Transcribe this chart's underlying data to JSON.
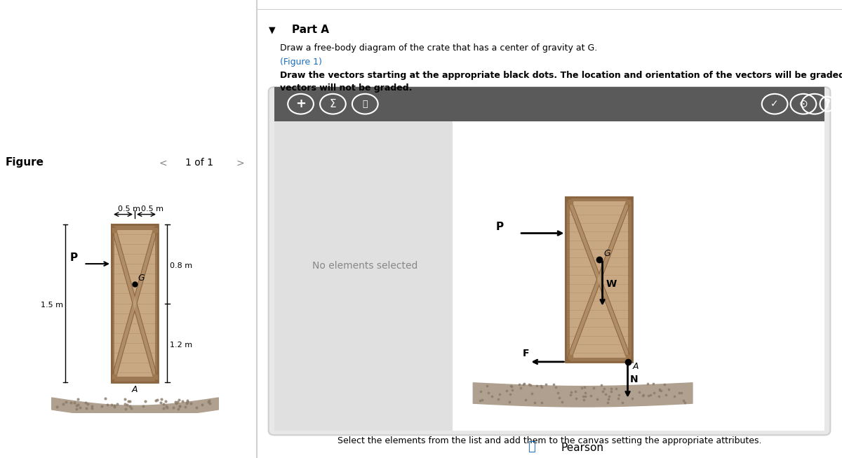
{
  "bg_color": "#f5f5f5",
  "white": "#ffffff",
  "dark_gray": "#4a4a4a",
  "mid_gray": "#888888",
  "light_gray": "#d0d0d0",
  "lighter_gray": "#e8e8e8",
  "panel_bg": "#e0e0e0",
  "toolbar_bg": "#5a5a5a",
  "wood_color": "#c8a882",
  "wood_dark": "#a07850",
  "wood_frame": "#8b6540",
  "ground_color": "#b0a090",
  "ground_dark": "#8a7a6a",
  "title_text": "Part A",
  "subtitle1": "Draw a free-body diagram of the crate that has a center of gravity at G.",
  "subtitle2": "(Figure 1)",
  "instruction": "Draw the vectors starting at the appropriate black dots. The location and orientation of the vectors will be graded. The length of the",
  "instruction2": "vectors will not be graded.",
  "no_elements": "No elements selected",
  "bottom_text": "Select the elements from the list and add them to the canvas setting the appropriate attributes.",
  "figure_label": "Figure",
  "page_label": "1 of 1",
  "dim_05m_left": "0.5 m",
  "dim_05m_right": "0.5 m",
  "dim_08m": "0.8 m",
  "dim_15m": "1.5 m",
  "dim_12m": "1.2 m",
  "label_P_fig": "P",
  "label_P_fbd": "P",
  "label_W": "W",
  "label_F": "F",
  "label_N": "N",
  "label_G": "G",
  "label_A": "A"
}
